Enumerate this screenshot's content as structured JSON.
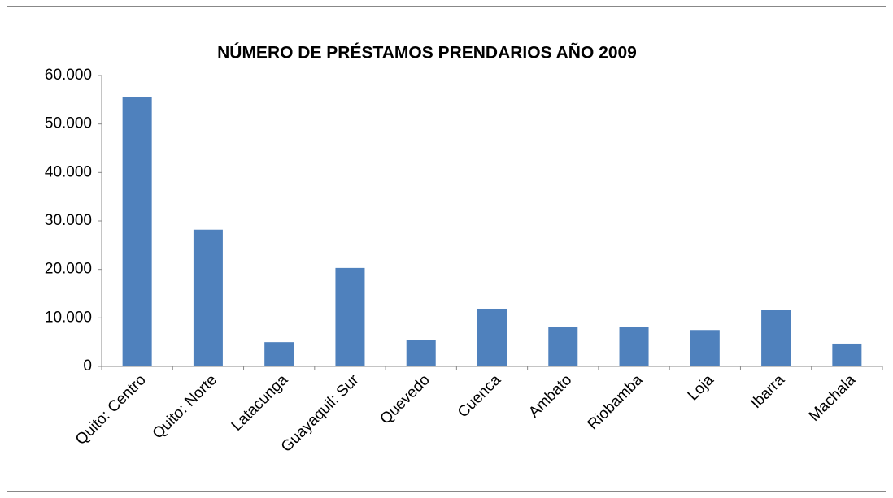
{
  "chart_data": {
    "type": "bar",
    "title": "NÚMERO DE PRÉSTAMOS PRENDARIOS AÑO 2009",
    "categories": [
      "Quito: Centro",
      "Quito: Norte",
      "Latacunga",
      "Guayaquil: Sur",
      "Quevedo",
      "Cuenca",
      "Ambato",
      "Riobamba",
      "Loja",
      "Ibarra",
      "Machala"
    ],
    "values": [
      55500,
      28200,
      5000,
      20300,
      5500,
      11900,
      8200,
      8200,
      7500,
      11600,
      4700
    ],
    "color": "#4f81bd",
    "ylim": [
      0,
      60000
    ],
    "yticks": [
      0,
      {
        "value": 10000,
        "label": "10.000"
      },
      {
        "value": 20000,
        "label": "20.000"
      },
      {
        "value": 30000,
        "label": "30.000"
      },
      {
        "value": 40000,
        "label": "40.000"
      },
      {
        "value": 50000,
        "label": "50.000"
      },
      {
        "value": 60000,
        "label": "60.000"
      }
    ],
    "grid": false
  }
}
